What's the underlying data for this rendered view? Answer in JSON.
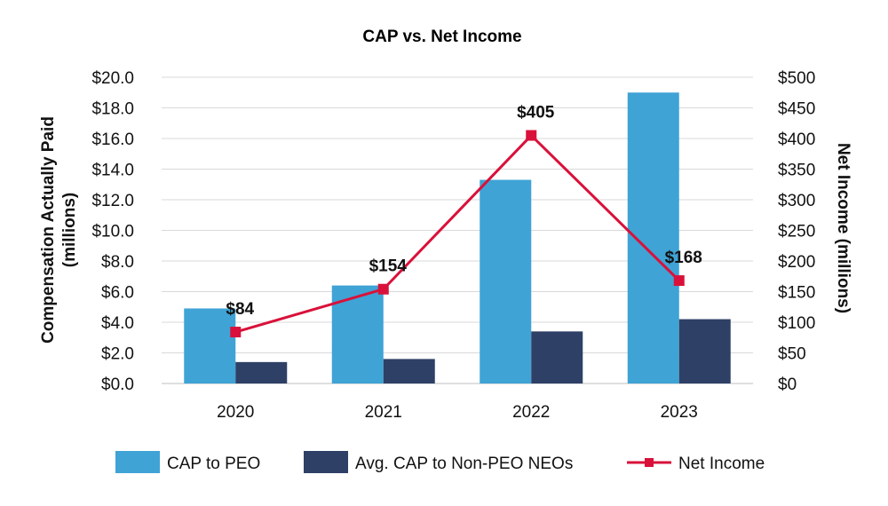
{
  "chart_data": {
    "type": "bar",
    "title": "CAP vs. Net Income",
    "categories": [
      "2020",
      "2021",
      "2022",
      "2023"
    ],
    "left_axis": {
      "label_line1": "Compensation Actually Paid",
      "label_line2": "(millions)",
      "ylim": [
        0,
        20
      ],
      "ticks": [
        0,
        2,
        4,
        6,
        8,
        10,
        12,
        14,
        16,
        18,
        20
      ],
      "tick_labels": [
        "$0.0",
        "$2.0",
        "$4.0",
        "$6.0",
        "$8.0",
        "$10.0",
        "$12.0",
        "$14.0",
        "$16.0",
        "$18.0",
        "$20.0"
      ]
    },
    "right_axis": {
      "label": "Net Income (millions)",
      "ylim": [
        0,
        500
      ],
      "ticks": [
        0,
        50,
        100,
        150,
        200,
        250,
        300,
        350,
        400,
        450,
        500
      ],
      "tick_labels": [
        "$0",
        "$50",
        "$100",
        "$150",
        "$200",
        "$250",
        "$300",
        "$350",
        "$400",
        "$450",
        "$500"
      ]
    },
    "series": [
      {
        "name": "CAP to PEO",
        "kind": "bar",
        "axis": "left",
        "color": "#3fa3d5",
        "values": [
          4.9,
          6.4,
          13.3,
          19.0
        ]
      },
      {
        "name": "Avg. CAP to Non-PEO NEOs",
        "kind": "bar",
        "axis": "left",
        "color": "#2e4066",
        "values": [
          1.4,
          1.6,
          3.4,
          4.2
        ]
      },
      {
        "name": "Net Income",
        "kind": "line",
        "axis": "right",
        "color": "#d9113a",
        "values": [
          84,
          154,
          405,
          168
        ],
        "data_labels": [
          "$84",
          "$154",
          "$405",
          "$168"
        ]
      }
    ],
    "legend_position": "bottom",
    "gridlines": true
  }
}
